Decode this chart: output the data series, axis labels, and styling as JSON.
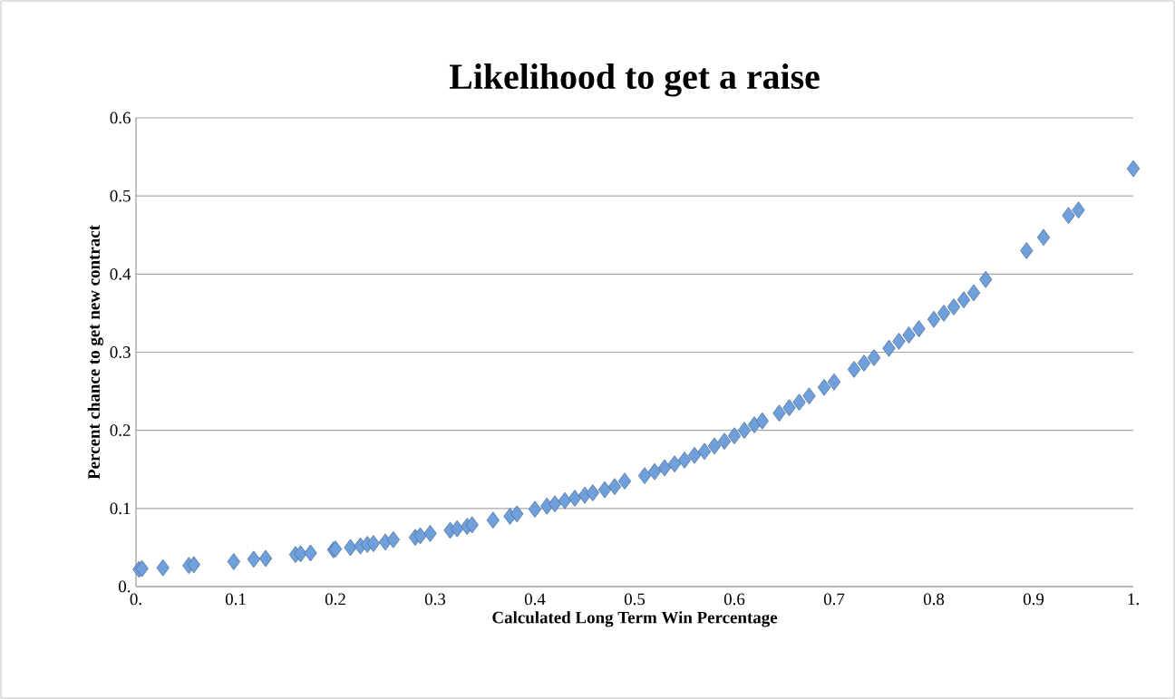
{
  "chart_data": {
    "type": "scatter",
    "title": "Likelihood to get a raise",
    "xlabel": "Calculated Long Term Win Percentage",
    "ylabel": "Percent chance to get new contract",
    "x": [
      0.003,
      0.006,
      0.027,
      0.053,
      0.058,
      0.098,
      0.118,
      0.13,
      0.16,
      0.165,
      0.175,
      0.198,
      0.2,
      0.215,
      0.225,
      0.232,
      0.238,
      0.25,
      0.258,
      0.28,
      0.285,
      0.295,
      0.315,
      0.322,
      0.332,
      0.337,
      0.358,
      0.375,
      0.382,
      0.4,
      0.412,
      0.42,
      0.43,
      0.44,
      0.45,
      0.458,
      0.47,
      0.48,
      0.49,
      0.51,
      0.52,
      0.53,
      0.54,
      0.55,
      0.56,
      0.57,
      0.58,
      0.59,
      0.6,
      0.61,
      0.62,
      0.628,
      0.645,
      0.655,
      0.665,
      0.675,
      0.69,
      0.7,
      0.72,
      0.73,
      0.74,
      0.755,
      0.765,
      0.775,
      0.785,
      0.8,
      0.81,
      0.82,
      0.83,
      0.84,
      0.852,
      0.893,
      0.91,
      0.935,
      0.945,
      1.0
    ],
    "values": [
      0.022,
      0.023,
      0.024,
      0.027,
      0.028,
      0.032,
      0.035,
      0.036,
      0.041,
      0.042,
      0.043,
      0.047,
      0.048,
      0.05,
      0.052,
      0.054,
      0.055,
      0.057,
      0.06,
      0.063,
      0.065,
      0.068,
      0.072,
      0.074,
      0.077,
      0.079,
      0.085,
      0.09,
      0.093,
      0.099,
      0.103,
      0.106,
      0.11,
      0.113,
      0.117,
      0.12,
      0.124,
      0.128,
      0.135,
      0.142,
      0.147,
      0.152,
      0.157,
      0.162,
      0.168,
      0.173,
      0.18,
      0.186,
      0.193,
      0.2,
      0.207,
      0.212,
      0.222,
      0.229,
      0.236,
      0.244,
      0.255,
      0.262,
      0.278,
      0.286,
      0.293,
      0.305,
      0.314,
      0.322,
      0.33,
      0.342,
      0.35,
      0.358,
      0.367,
      0.376,
      0.393,
      0.43,
      0.447,
      0.475,
      0.482,
      0.535
    ],
    "color": "#6fa0dc",
    "marker": "diamond",
    "grid": "y",
    "xlim": [
      0,
      1
    ],
    "xticks": [
      {
        "value": 0,
        "label": "0."
      },
      0.1,
      0.2,
      0.3,
      0.4,
      0.5,
      0.6,
      0.7,
      0.8,
      0.9,
      {
        "value": 1,
        "label": "1."
      }
    ],
    "ylim": [
      0,
      0.6
    ],
    "yticks": [
      {
        "value": 0,
        "label": "0."
      },
      0.1,
      0.2,
      0.3,
      0.4,
      0.5,
      0.6
    ]
  }
}
